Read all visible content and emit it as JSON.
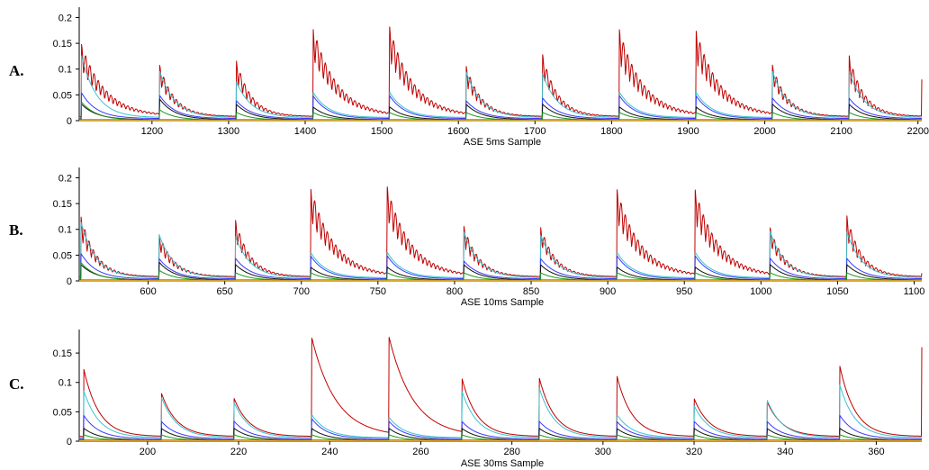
{
  "chart_data": [
    {
      "type": "line",
      "panel_label": "A.",
      "xlabel": "ASE 5ms Sample",
      "xlim": [
        1105,
        2205
      ],
      "ylim": [
        0,
        0.22
      ],
      "xticks": [
        1200,
        1300,
        1400,
        1500,
        1600,
        1700,
        1800,
        1900,
        2000,
        2100,
        2200
      ],
      "yticks": [
        0,
        0.05,
        0.1,
        0.15,
        0.2
      ],
      "ytick_labels": [
        "0",
        "0.05",
        "0.1",
        "0.15",
        "0.2"
      ],
      "oscillating": true,
      "end_value": 0.08,
      "peaks": [
        {
          "x": 1108,
          "red": 0.14,
          "cyan": 0.12,
          "blue": 0.05,
          "black": 0.03,
          "green": 0.035
        },
        {
          "x": 1210,
          "red": 0.1,
          "cyan": 0.09,
          "blue": 0.045,
          "black": 0.04,
          "green": 0.02
        },
        {
          "x": 1310,
          "red": 0.11,
          "cyan": 0.07,
          "blue": 0.035,
          "black": 0.03,
          "green": 0.015
        },
        {
          "x": 1410,
          "red": 0.175,
          "cyan": 0.05,
          "blue": 0.045,
          "black": 0.025,
          "green": 0.015
        },
        {
          "x": 1510,
          "red": 0.175,
          "cyan": 0.05,
          "blue": 0.045,
          "black": 0.025,
          "green": 0.015
        },
        {
          "x": 1610,
          "red": 0.1,
          "cyan": 0.09,
          "blue": 0.035,
          "black": 0.03,
          "green": 0.015
        },
        {
          "x": 1710,
          "red": 0.12,
          "cyan": 0.085,
          "blue": 0.04,
          "black": 0.03,
          "green": 0.015
        },
        {
          "x": 1810,
          "red": 0.17,
          "cyan": 0.05,
          "blue": 0.045,
          "black": 0.025,
          "green": 0.015
        },
        {
          "x": 1910,
          "red": 0.17,
          "cyan": 0.05,
          "blue": 0.045,
          "black": 0.025,
          "green": 0.015
        },
        {
          "x": 2010,
          "red": 0.1,
          "cyan": 0.09,
          "blue": 0.04,
          "black": 0.03,
          "green": 0.015
        },
        {
          "x": 2110,
          "red": 0.12,
          "cyan": 0.09,
          "blue": 0.04,
          "black": 0.03,
          "green": 0.015
        }
      ]
    },
    {
      "type": "line",
      "panel_label": "B.",
      "xlabel": "ASE 10ms Sample",
      "xlim": [
        555,
        1105
      ],
      "ylim": [
        0,
        0.22
      ],
      "xticks": [
        600,
        650,
        700,
        750,
        800,
        850,
        900,
        950,
        1000,
        1050,
        1100
      ],
      "yticks": [
        0,
        0.05,
        0.1,
        0.15,
        0.2
      ],
      "ytick_labels": [
        "0",
        "0.05",
        "0.1",
        "0.15",
        "0.2"
      ],
      "oscillating": true,
      "end_value": 0.015,
      "peaks": [
        {
          "x": 556,
          "red": 0.12,
          "cyan": 0.11,
          "blue": 0.05,
          "black": 0.03,
          "green": 0.035
        },
        {
          "x": 607,
          "red": 0.085,
          "cyan": 0.085,
          "blue": 0.04,
          "black": 0.035,
          "green": 0.02
        },
        {
          "x": 657,
          "red": 0.11,
          "cyan": 0.08,
          "blue": 0.04,
          "black": 0.03,
          "green": 0.015
        },
        {
          "x": 706,
          "red": 0.175,
          "cyan": 0.05,
          "blue": 0.045,
          "black": 0.025,
          "green": 0.015
        },
        {
          "x": 756,
          "red": 0.175,
          "cyan": 0.05,
          "blue": 0.045,
          "black": 0.025,
          "green": 0.015
        },
        {
          "x": 806,
          "red": 0.1,
          "cyan": 0.09,
          "blue": 0.035,
          "black": 0.03,
          "green": 0.015
        },
        {
          "x": 856,
          "red": 0.1,
          "cyan": 0.085,
          "blue": 0.04,
          "black": 0.03,
          "green": 0.015
        },
        {
          "x": 906,
          "red": 0.17,
          "cyan": 0.05,
          "blue": 0.045,
          "black": 0.025,
          "green": 0.015
        },
        {
          "x": 957,
          "red": 0.17,
          "cyan": 0.05,
          "blue": 0.045,
          "black": 0.025,
          "green": 0.015
        },
        {
          "x": 1006,
          "red": 0.095,
          "cyan": 0.09,
          "blue": 0.04,
          "black": 0.03,
          "green": 0.015
        },
        {
          "x": 1056,
          "red": 0.12,
          "cyan": 0.09,
          "blue": 0.04,
          "black": 0.03,
          "green": 0.015
        }
      ]
    },
    {
      "type": "line",
      "panel_label": "C.",
      "xlabel": "ASE 30ms Sample",
      "xlim": [
        185,
        370
      ],
      "ylim": [
        0,
        0.19
      ],
      "xticks": [
        200,
        220,
        240,
        260,
        280,
        300,
        320,
        340,
        360
      ],
      "yticks": [
        0,
        0.05,
        0.1,
        0.15
      ],
      "ytick_labels": [
        "0",
        "0.05",
        "0.1",
        "0.15"
      ],
      "oscillating": false,
      "end_value": 0.16,
      "peaks": [
        {
          "x": 186,
          "red": 0.115,
          "cyan": 0.08,
          "blue": 0.04,
          "black": 0.02,
          "green": 0.01
        },
        {
          "x": 203,
          "red": 0.075,
          "cyan": 0.07,
          "blue": 0.03,
          "black": 0.02,
          "green": 0.01
        },
        {
          "x": 219,
          "red": 0.065,
          "cyan": 0.06,
          "blue": 0.03,
          "black": 0.02,
          "green": 0.01
        },
        {
          "x": 236,
          "red": 0.17,
          "cyan": 0.04,
          "blue": 0.035,
          "black": 0.02,
          "green": 0.01
        },
        {
          "x": 253,
          "red": 0.17,
          "cyan": 0.035,
          "blue": 0.03,
          "black": 0.02,
          "green": 0.01
        },
        {
          "x": 269,
          "red": 0.1,
          "cyan": 0.08,
          "blue": 0.03,
          "black": 0.02,
          "green": 0.01
        },
        {
          "x": 286,
          "red": 0.1,
          "cyan": 0.085,
          "blue": 0.03,
          "black": 0.02,
          "green": 0.01
        },
        {
          "x": 303,
          "red": 0.105,
          "cyan": 0.04,
          "blue": 0.03,
          "black": 0.02,
          "green": 0.01
        },
        {
          "x": 320,
          "red": 0.065,
          "cyan": 0.055,
          "blue": 0.03,
          "black": 0.02,
          "green": 0.01
        },
        {
          "x": 336,
          "red": 0.06,
          "cyan": 0.065,
          "blue": 0.03,
          "black": 0.02,
          "green": 0.01
        },
        {
          "x": 352,
          "red": 0.12,
          "cyan": 0.09,
          "blue": 0.04,
          "black": 0.02,
          "green": 0.01
        }
      ]
    }
  ],
  "colors": {
    "red": "#c00000",
    "cyan": "#3cc3d0",
    "blue": "#3a3aff",
    "black": "#111111",
    "green": "#1a9a1a",
    "magenta": "#c020c0",
    "yellow": "#e0c000",
    "axis": "#000000"
  }
}
